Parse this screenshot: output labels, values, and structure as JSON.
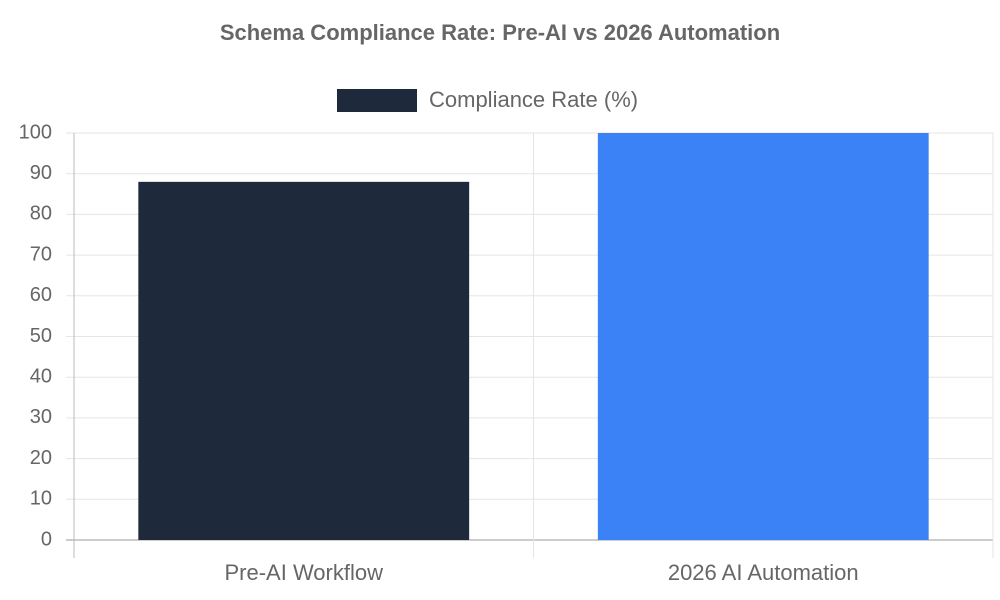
{
  "chart_data": {
    "type": "bar",
    "title": "Schema Compliance Rate: Pre-AI vs 2026 Automation",
    "categories": [
      "Pre-AI Workflow",
      "2026 AI Automation"
    ],
    "series": [
      {
        "name": "Compliance Rate (%)",
        "colors": [
          "#1e293b",
          "#3b82f6"
        ],
        "values": [
          88,
          100
        ]
      }
    ],
    "ylim": [
      0,
      100
    ],
    "yticks": [
      0,
      10,
      20,
      30,
      40,
      50,
      60,
      70,
      80,
      90,
      100
    ],
    "grid": true,
    "legend": "top"
  }
}
